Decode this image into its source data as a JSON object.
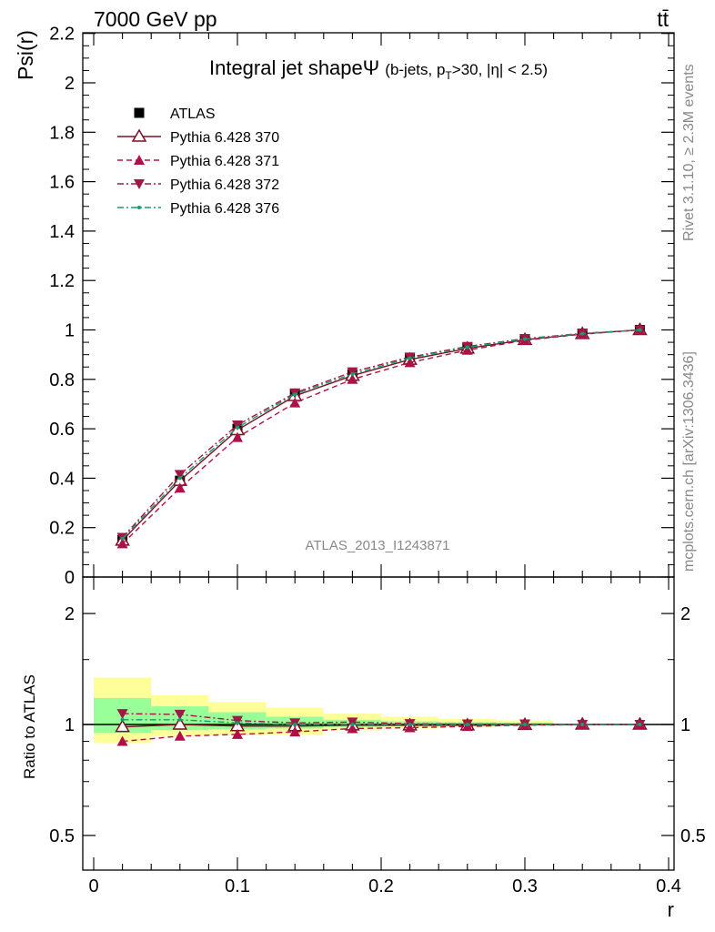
{
  "header": {
    "energy_label": "7000 GeV pp",
    "process_label": "tt̄",
    "rivet_label": "Rivet 3.1.10, ≥ 2.3M events",
    "mcplots_label": "mcplots.cern.ch [arXiv:1306.3436]",
    "analysis_label": "ATLAS_2013_I1243871"
  },
  "chart_data": [
    {
      "type": "line",
      "title_main": "Integral jet shapeΨ",
      "title_sub": "(b-jets, p",
      "title_sub_T": "T",
      "title_sub_rest": ">30, |η| < 2.5)",
      "ylabel": "Psi(r)",
      "xlabel": "",
      "xlim": [
        -0.02,
        0.4
      ],
      "ylim": [
        0,
        2.2
      ],
      "x": [
        0.02,
        0.06,
        0.1,
        0.14,
        0.18,
        0.22,
        0.26,
        0.3,
        0.34,
        0.38
      ],
      "yticks": [
        "0",
        "0.2",
        "0.4",
        "0.6",
        "0.8",
        "1",
        "1.2",
        "1.4",
        "1.6",
        "1.8",
        "2",
        "2.2"
      ],
      "legend_position": "top-left",
      "series": [
        {
          "name": "ATLAS",
          "color": "#000000",
          "marker": "square",
          "line": "none",
          "values": [
            0.15,
            0.39,
            0.6,
            0.74,
            0.82,
            0.885,
            0.93,
            0.962,
            0.985,
            1.0
          ]
        },
        {
          "name": "Pythia 6.428 370",
          "color": "#7a1020",
          "marker": "triangle-up-open",
          "line": "solid",
          "values": [
            0.148,
            0.39,
            0.595,
            0.733,
            0.815,
            0.88,
            0.925,
            0.96,
            0.984,
            1.0
          ]
        },
        {
          "name": "Pythia 6.428 371",
          "color": "#b0104a",
          "marker": "triangle-up",
          "line": "dashed",
          "values": [
            0.135,
            0.36,
            0.565,
            0.705,
            0.8,
            0.868,
            0.918,
            0.958,
            0.983,
            1.0
          ]
        },
        {
          "name": "Pythia 6.428 372",
          "color": "#a01845",
          "marker": "triangle-down",
          "line": "dashdot",
          "values": [
            0.16,
            0.415,
            0.615,
            0.745,
            0.83,
            0.89,
            0.933,
            0.965,
            0.986,
            1.0
          ]
        },
        {
          "name": "Pythia 6.428 376",
          "color": "#1a9a70",
          "marker": "dot",
          "line": "dashdot",
          "values": [
            0.155,
            0.4,
            0.605,
            0.74,
            0.822,
            0.886,
            0.93,
            0.963,
            0.985,
            1.0
          ]
        }
      ]
    },
    {
      "type": "line",
      "ylabel": "Ratio to ATLAS",
      "xlabel": "r",
      "xlim": [
        -0.02,
        0.4
      ],
      "ylim": [
        0.4,
        2.3
      ],
      "y_scale": "log",
      "yticks": [
        "0.5",
        "1",
        "2"
      ],
      "xticks": [
        "0",
        "0.1",
        "0.2",
        "0.3",
        "0.4"
      ],
      "x": [
        0.02,
        0.06,
        0.1,
        0.14,
        0.18,
        0.22,
        0.26,
        0.3,
        0.34,
        0.38
      ],
      "uncertainty_bands": {
        "bin_edges": [
          0.0,
          0.04,
          0.08,
          0.12,
          0.16,
          0.2,
          0.24,
          0.28,
          0.32,
          0.36,
          0.4
        ],
        "yellow_low": [
          0.89,
          0.93,
          0.935,
          0.94,
          0.965,
          0.975,
          0.985,
          0.99,
          1.0,
          1.0
        ],
        "yellow_high": [
          1.34,
          1.2,
          1.15,
          1.11,
          1.07,
          1.05,
          1.035,
          1.025,
          1.0,
          1.0
        ],
        "green_low": [
          0.95,
          0.965,
          0.97,
          0.975,
          0.985,
          0.99,
          0.993,
          0.995,
          1.0,
          1.0
        ],
        "green_high": [
          1.18,
          1.12,
          1.08,
          1.05,
          1.03,
          1.02,
          1.015,
          1.01,
          1.0,
          1.0
        ],
        "yellow_color": "#ffff99",
        "green_color": "#99ff99"
      },
      "series": [
        {
          "name": "Pythia 6.428 370",
          "color": "#7a1020",
          "marker": "triangle-up-open",
          "line": "solid",
          "values": [
            0.985,
            1.0,
            0.99,
            0.99,
            0.995,
            0.995,
            0.995,
            0.998,
            1.0,
            1.0
          ]
        },
        {
          "name": "Pythia 6.428 371",
          "color": "#b0104a",
          "marker": "triangle-up",
          "line": "dashed",
          "values": [
            0.9,
            0.93,
            0.94,
            0.955,
            0.975,
            0.98,
            0.988,
            0.996,
            0.998,
            1.0
          ]
        },
        {
          "name": "Pythia 6.428 372",
          "color": "#a01845",
          "marker": "triangle-down",
          "line": "dashdot",
          "values": [
            1.07,
            1.065,
            1.025,
            1.01,
            1.015,
            1.005,
            1.003,
            1.003,
            1.001,
            1.0
          ]
        },
        {
          "name": "Pythia 6.428 376",
          "color": "#1a9a70",
          "marker": "dot",
          "line": "dashdot",
          "values": [
            1.03,
            1.03,
            1.01,
            1.0,
            1.0,
            1.0,
            1.0,
            1.0,
            1.0,
            1.0
          ]
        }
      ]
    }
  ]
}
